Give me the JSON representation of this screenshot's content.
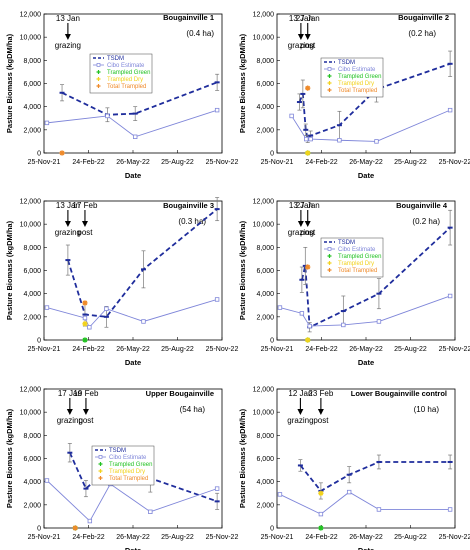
{
  "chart_data": [
    {
      "type": "line",
      "title": "Bougainville 1",
      "subtitle": "(0.4 ha)",
      "xlabel": "Date",
      "ylabel": "Pasture Biomass (kgDM/ha)",
      "x_ticks": [
        "25-Nov-21",
        "24-Feb-22",
        "26-May-22",
        "25-Aug-22",
        "25-Nov-22"
      ],
      "y_ticks": [
        "0",
        "2,000",
        "4,000",
        "6,000",
        "8,000",
        "10,000",
        "12,000"
      ],
      "ylim": [
        0,
        12000
      ],
      "annotations": [
        {
          "x": "2022-01-13",
          "lines": [
            "13 Jan",
            "grazing"
          ]
        }
      ],
      "legend": [
        "TSDM",
        "Cibo Estimate",
        "Trampled Green",
        "Trampled Dry",
        "Total Trampled"
      ],
      "series": [
        {
          "name": "TSDM",
          "points": [
            [
              "2022-01-01",
              5200,
              700
            ],
            [
              "2022-04-04",
              3300,
              600
            ],
            [
              "2022-05-31",
              3400,
              600
            ],
            [
              "2022-11-15",
              6100,
              700
            ]
          ]
        },
        {
          "name": "Cibo Estimate",
          "points": [
            [
              "2021-12-01",
              2600
            ],
            [
              "2022-04-04",
              3200
            ],
            [
              "2022-05-31",
              1400
            ],
            [
              "2022-11-15",
              3700
            ]
          ]
        },
        {
          "name": "Trampled Green",
          "points": []
        },
        {
          "name": "Trampled Dry",
          "points": []
        },
        {
          "name": "Total Trampled",
          "points": [
            [
              "2022-01-01",
              0
            ]
          ]
        }
      ]
    },
    {
      "type": "line",
      "title": "Bougainville 2",
      "subtitle": "(0.2 ha)",
      "xlabel": "Date",
      "ylabel": "Pasture Biomass (kgDM/ha)",
      "x_ticks": [
        "25-Nov-21",
        "24-Feb-22",
        "26-May-22",
        "25-Aug-22",
        "25-Nov-22"
      ],
      "y_ticks": [
        "0",
        "2,000",
        "4,000",
        "6,000",
        "8,000",
        "10,000",
        "12,000"
      ],
      "ylim": [
        0,
        12000
      ],
      "annotations": [
        {
          "x": "2022-01-13",
          "lines": [
            "13 Jan",
            "grazing"
          ]
        },
        {
          "x": "2022-01-27",
          "lines": [
            "27 Jan",
            "post"
          ]
        }
      ],
      "legend": [
        "TSDM",
        "Cibo Estimate",
        "Trampled Green",
        "Trampled Dry",
        "Total Trampled"
      ],
      "series": [
        {
          "name": "TSDM",
          "points": [
            [
              "2022-01-10",
              4400,
              700
            ],
            [
              "2022-01-17",
              5100,
              1200
            ],
            [
              "2022-01-23",
              2000,
              500
            ],
            [
              "2022-01-27",
              1200,
              300
            ],
            [
              "2022-02-02",
              1500,
              400
            ],
            [
              "2022-04-02",
              2400,
              1200
            ],
            [
              "2022-06-17",
              5500,
              1100
            ],
            [
              "2022-11-15",
              7700,
              1100
            ]
          ]
        },
        {
          "name": "Cibo Estimate",
          "points": [
            [
              "2021-12-25",
              3200
            ],
            [
              "2022-01-24",
              1200
            ],
            [
              "2022-02-02",
              1200
            ],
            [
              "2022-04-02",
              1100
            ],
            [
              "2022-06-17",
              1000
            ],
            [
              "2022-11-15",
              3700
            ]
          ]
        },
        {
          "name": "Trampled Green",
          "points": [
            [
              "2022-01-27",
              0
            ]
          ]
        },
        {
          "name": "Trampled Dry",
          "points": [
            [
              "2022-01-27",
              0
            ]
          ]
        },
        {
          "name": "Total Trampled",
          "points": [
            [
              "2022-01-27",
              5600
            ]
          ]
        }
      ]
    },
    {
      "type": "line",
      "title": "Bougainville 3",
      "subtitle": "(0.3 ha)",
      "xlabel": "Date",
      "ylabel": "Pasture Biomass (kgDM/ha)",
      "x_ticks": [
        "25-Nov-21",
        "24-Feb-22",
        "26-May-22",
        "25-Aug-22",
        "25-Nov-22"
      ],
      "y_ticks": [
        "0",
        "2,000",
        "4,000",
        "6,000",
        "8,000",
        "10,000",
        "12,000"
      ],
      "ylim": [
        0,
        12000
      ],
      "annotations": [
        {
          "x": "2022-01-13",
          "lines": [
            "13 Jan",
            "grazing"
          ]
        },
        {
          "x": "2022-02-17",
          "lines": [
            "17 Feb",
            "post"
          ]
        }
      ],
      "legend": [],
      "series": [
        {
          "name": "TSDM",
          "points": [
            [
              "2022-01-13",
              6900,
              1300
            ],
            [
              "2022-02-17",
              2200,
              1000
            ],
            [
              "2022-04-02",
              2000,
              900
            ],
            [
              "2022-06-17",
              6100,
              1600
            ],
            [
              "2022-11-15",
              11300,
              1000
            ]
          ]
        },
        {
          "name": "Cibo Estimate",
          "points": [
            [
              "2021-12-01",
              2800
            ],
            [
              "2022-02-17",
              1900
            ],
            [
              "2022-02-26",
              1100
            ],
            [
              "2022-04-02",
              2700
            ],
            [
              "2022-06-17",
              1600
            ],
            [
              "2022-11-15",
              3500
            ]
          ]
        },
        {
          "name": "Trampled Green",
          "points": [
            [
              "2022-02-17",
              0
            ]
          ]
        },
        {
          "name": "Trampled Dry",
          "points": [
            [
              "2022-02-17",
              1400
            ]
          ]
        },
        {
          "name": "Total Trampled",
          "points": [
            [
              "2022-02-17",
              3200
            ]
          ]
        }
      ]
    },
    {
      "type": "line",
      "title": "Bougainville 4",
      "subtitle": "(0.2 ha)",
      "xlabel": "Date",
      "ylabel": "Pasture Biomass (kgDM/ha)",
      "x_ticks": [
        "25-Nov-21",
        "24-Feb-22",
        "26-May-22",
        "25-Aug-22",
        "25-Nov-22"
      ],
      "y_ticks": [
        "0",
        "2,000",
        "4,000",
        "6,000",
        "8,000",
        "10,000",
        "12,000"
      ],
      "ylim": [
        0,
        12000
      ],
      "annotations": [
        {
          "x": "2022-01-13",
          "lines": [
            "13 Jan",
            "grazing"
          ]
        },
        {
          "x": "2022-01-27",
          "lines": [
            "27 Jan",
            "post"
          ]
        }
      ],
      "legend": [
        "TSDM",
        "Cibo Estimate",
        "Trampled Green",
        "Trampled Dry",
        "Total Trampled"
      ],
      "series": [
        {
          "name": "TSDM",
          "points": [
            [
              "2022-01-15",
              5200,
              1100
            ],
            [
              "2022-01-22",
              6400,
              1600
            ],
            [
              "2022-01-31",
              1100,
              400
            ],
            [
              "2022-04-10",
              2500,
              1300
            ],
            [
              "2022-06-22",
              4000,
              1300
            ],
            [
              "2022-11-15",
              9700,
              1500
            ]
          ]
        },
        {
          "name": "Cibo Estimate",
          "points": [
            [
              "2021-12-01",
              2800
            ],
            [
              "2022-01-15",
              2300
            ],
            [
              "2022-01-31",
              1200
            ],
            [
              "2022-04-10",
              1300
            ],
            [
              "2022-06-22",
              1600
            ],
            [
              "2022-11-15",
              3800
            ]
          ]
        },
        {
          "name": "Trampled Green",
          "points": [
            [
              "2022-01-27",
              0
            ]
          ]
        },
        {
          "name": "Trampled Dry",
          "points": [
            [
              "2022-01-27",
              0
            ]
          ]
        },
        {
          "name": "Total Trampled",
          "points": [
            [
              "2022-01-27",
              6300
            ]
          ]
        }
      ]
    },
    {
      "type": "line",
      "title": "Upper Bougainville",
      "subtitle": "(54 ha)",
      "xlabel": "Date",
      "ylabel": "Pasture Biomass (kgDM/ha)",
      "x_ticks": [
        "25-Nov-21",
        "24-Feb-22",
        "26-May-22",
        "25-Aug-22",
        "25-Nov-22"
      ],
      "y_ticks": [
        "0",
        "2,000",
        "4,000",
        "6,000",
        "8,000",
        "10,000",
        "12,000"
      ],
      "ylim": [
        0,
        12000
      ],
      "annotations": [
        {
          "x": "2022-01-17",
          "lines": [
            "17 Jan",
            "grazing"
          ]
        },
        {
          "x": "2022-02-19",
          "lines": [
            "19 Feb",
            "post"
          ]
        }
      ],
      "legend": [
        "TSDM",
        "Cibo Estimate",
        "Trampled Green",
        "Trampled Dry",
        "Total Trampled"
      ],
      "series": [
        {
          "name": "TSDM",
          "points": [
            [
              "2022-01-17",
              6500,
              800
            ],
            [
              "2022-02-19",
              3400,
              700
            ],
            [
              "2022-04-10",
              5300,
              900
            ],
            [
              "2022-07-01",
              4300,
              1200
            ],
            [
              "2022-11-15",
              2300,
              700
            ]
          ]
        },
        {
          "name": "Cibo Estimate",
          "points": [
            [
              "2021-12-01",
              4100
            ],
            [
              "2022-02-27",
              600
            ],
            [
              "2022-04-10",
              3800
            ],
            [
              "2022-07-01",
              1400
            ],
            [
              "2022-11-15",
              3400
            ]
          ]
        },
        {
          "name": "Trampled Green",
          "points": [
            [
              "2022-01-28",
              0
            ]
          ]
        },
        {
          "name": "Trampled Dry",
          "points": []
        },
        {
          "name": "Total Trampled",
          "points": [
            [
              "2022-01-28",
              0
            ]
          ]
        }
      ]
    },
    {
      "type": "line",
      "title": "Lower Bougainville control",
      "subtitle": "(10 ha)",
      "xlabel": "Date",
      "ylabel": "Pasture Biomass (kgDM/ha)",
      "x_ticks": [
        "25-Nov-21",
        "24-Feb-22",
        "26-May-22",
        "25-Aug-22",
        "25-Nov-22"
      ],
      "y_ticks": [
        "0",
        "2,000",
        "4,000",
        "6,000",
        "8,000",
        "10,000",
        "12,000"
      ],
      "ylim": [
        0,
        12000
      ],
      "annotations": [
        {
          "x": "2022-01-12",
          "lines": [
            "12 Jan",
            "grazing"
          ]
        },
        {
          "x": "2022-02-23",
          "lines": [
            "23 Feb",
            "post"
          ]
        }
      ],
      "legend": [],
      "series": [
        {
          "name": "TSDM",
          "points": [
            [
              "2022-01-12",
              5400,
              500
            ],
            [
              "2022-02-23",
              3200,
              700
            ],
            [
              "2022-04-22",
              4600,
              700
            ],
            [
              "2022-06-22",
              5700,
              600
            ],
            [
              "2022-11-15",
              5700,
              600
            ]
          ]
        },
        {
          "name": "Cibo Estimate",
          "points": [
            [
              "2021-12-01",
              2900
            ],
            [
              "2022-02-23",
              1200
            ],
            [
              "2022-04-22",
              3100
            ],
            [
              "2022-06-22",
              1600
            ],
            [
              "2022-11-15",
              1600
            ]
          ]
        },
        {
          "name": "Trampled Green",
          "points": [
            [
              "2022-02-23",
              0
            ]
          ]
        },
        {
          "name": "Trampled Dry",
          "points": [
            [
              "2022-02-23",
              3000
            ]
          ]
        },
        {
          "name": "Total Trampled",
          "points": []
        }
      ]
    }
  ],
  "colors": {
    "tsdm": "#1f2d9c",
    "cibo": "#7f86d9",
    "trampled_green": "#22c222",
    "trampled_dry": "#f2d21c",
    "total_trampled": "#ef8a2a"
  }
}
